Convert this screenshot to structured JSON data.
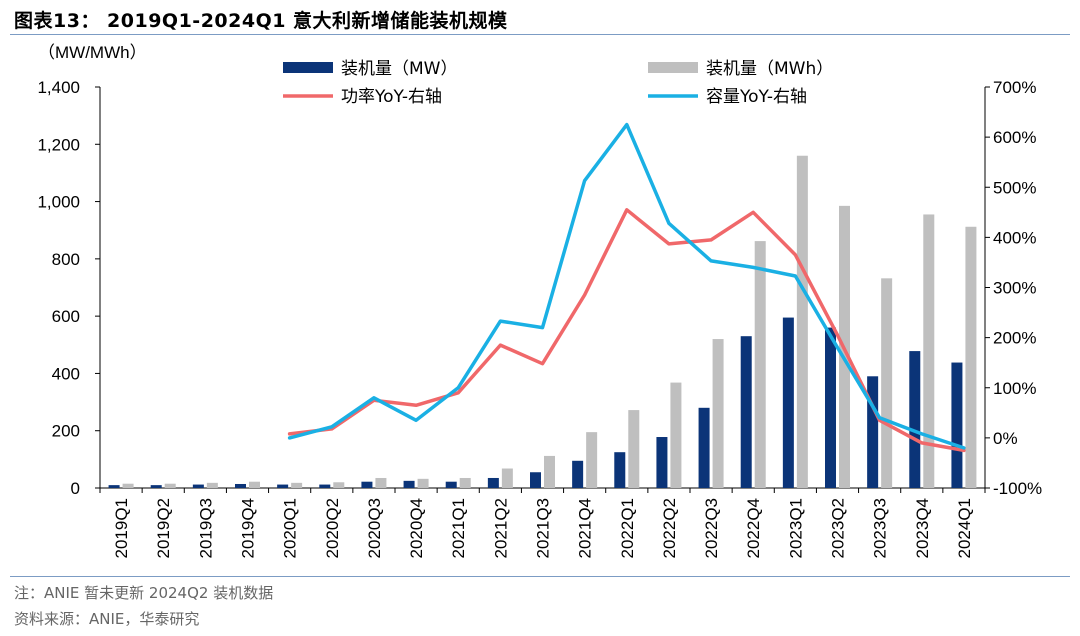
{
  "title": "图表13： 2019Q1-2024Q1 意大利新增储能装机规模",
  "note": "注：ANIE 暂未更新 2024Q2 装机数据",
  "source": "资料来源：ANIE，华泰研究",
  "chart_data": {
    "type": "bar",
    "categories": [
      "2019Q1",
      "2019Q2",
      "2019Q3",
      "2019Q4",
      "2020Q1",
      "2020Q2",
      "2020Q3",
      "2020Q4",
      "2021Q1",
      "2021Q2",
      "2021Q3",
      "2021Q4",
      "2022Q1",
      "2022Q2",
      "2022Q3",
      "2022Q4",
      "2023Q1",
      "2023Q2",
      "2023Q3",
      "2023Q4",
      "2024Q1"
    ],
    "y_left": {
      "label": "（MW/MWh）",
      "range": [
        0,
        1400
      ],
      "ticks": [
        "0",
        "200",
        "400",
        "600",
        "800",
        "1,000",
        "1,200",
        "1,400"
      ]
    },
    "y_right": {
      "label": "",
      "range": [
        -1.0,
        7.0
      ],
      "ticks": [
        "-100%",
        "0%",
        "100%",
        "200%",
        "300%",
        "400%",
        "500%",
        "600%",
        "700%"
      ]
    },
    "series": [
      {
        "name": "装机量（MW）",
        "type": "bar",
        "axis": "left",
        "color": "#0b3478",
        "values": [
          10,
          10,
          12,
          14,
          12,
          12,
          22,
          25,
          22,
          35,
          55,
          95,
          125,
          178,
          280,
          530,
          595,
          560,
          390,
          478,
          438
        ]
      },
      {
        "name": "装机量（MWh）",
        "type": "bar",
        "axis": "left",
        "color": "#bfbfbf",
        "values": [
          15,
          15,
          18,
          22,
          18,
          20,
          35,
          32,
          35,
          68,
          112,
          195,
          272,
          368,
          520,
          862,
          1160,
          985,
          732,
          955,
          912
        ]
      },
      {
        "name": "功率YoY-右轴",
        "type": "line",
        "axis": "right",
        "color": "#f0686a",
        "values": [
          null,
          null,
          null,
          null,
          0.08,
          0.18,
          0.75,
          0.65,
          0.9,
          1.85,
          1.48,
          2.85,
          4.55,
          3.87,
          3.95,
          4.5,
          3.65,
          2.05,
          0.35,
          -0.1,
          -0.25
        ]
      },
      {
        "name": "容量YoY-右轴",
        "type": "line",
        "axis": "right",
        "color": "#1ab0e4",
        "values": [
          null,
          null,
          null,
          null,
          0.0,
          0.22,
          0.8,
          0.35,
          1.0,
          2.33,
          2.2,
          5.13,
          6.25,
          4.28,
          3.53,
          3.4,
          3.23,
          1.8,
          0.4,
          0.08,
          -0.2
        ]
      }
    ],
    "legend": "top, two columns",
    "grid": false
  }
}
